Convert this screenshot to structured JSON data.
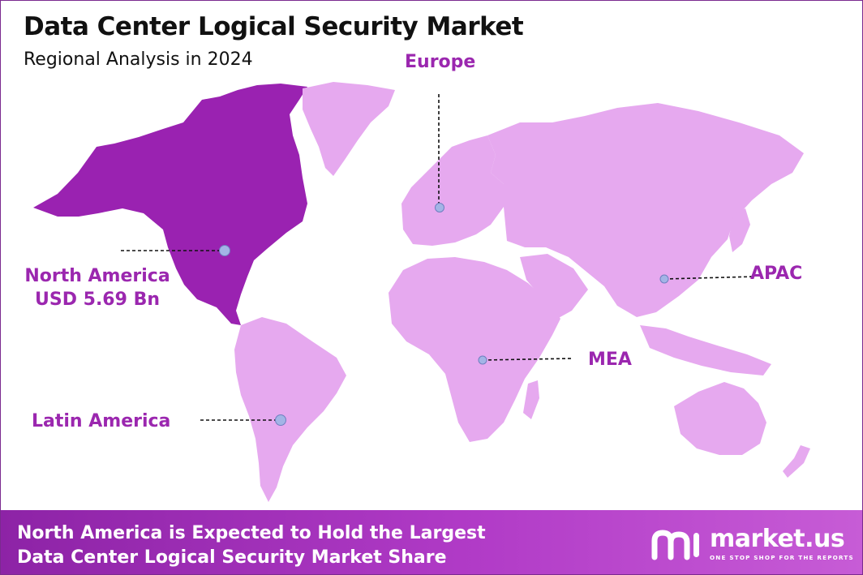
{
  "header": {
    "title": "Data Center Logical Security Market",
    "subtitle": "Regional Analysis in 2024"
  },
  "regions": {
    "north_america": {
      "name": "North America",
      "value": "USD 5.69 Bn",
      "highlighted": true
    },
    "europe": {
      "name": "Europe"
    },
    "apac": {
      "name": "APAC"
    },
    "mea": {
      "name": "MEA"
    },
    "latin_america": {
      "name": "Latin America"
    }
  },
  "colors": {
    "highlight": "#9a22b1",
    "land": "#e6a9ef",
    "label": "#9b27af",
    "marker": "#a3b4e6"
  },
  "footer": {
    "line1": "North America is Expected to Hold the Largest",
    "line2": "Data Center Logical Security Market Share"
  },
  "logo": {
    "name": "market.us",
    "tagline": "ONE STOP SHOP FOR THE REPORTS"
  }
}
